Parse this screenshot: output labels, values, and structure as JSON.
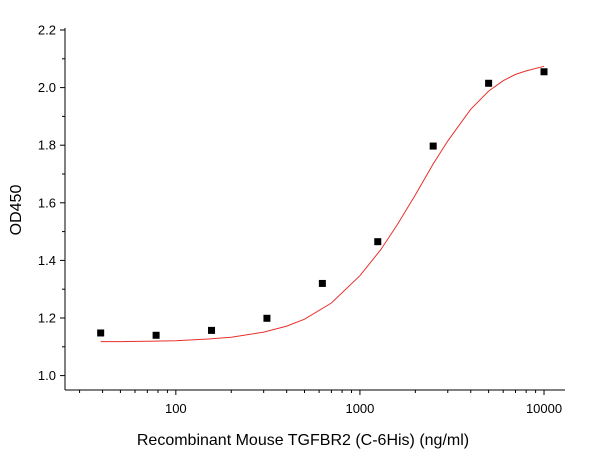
{
  "chart_data": {
    "type": "scatter",
    "xlabel": "Recombinant Mouse TGFBR2 (C-6His) (ng/ml)",
    "ylabel": "OD450",
    "xscale": "log",
    "xlim": [
      25,
      13000
    ],
    "ylim": [
      0.95,
      2.2
    ],
    "x_ticks": [
      100,
      1000,
      10000
    ],
    "x_tick_labels": [
      "100",
      "1000",
      "10000"
    ],
    "y_ticks": [
      1.0,
      1.2,
      1.4,
      1.6,
      1.8,
      2.0,
      2.2
    ],
    "y_tick_labels": [
      "1.0",
      "1.2",
      "1.4",
      "1.6",
      "1.8",
      "2.0",
      "2.2"
    ],
    "grid": false,
    "series": [
      {
        "type": "scatter",
        "marker": "square",
        "color": "#000000",
        "x": [
          39.06,
          78.13,
          156.25,
          312.5,
          625,
          1250,
          2500,
          5000,
          10000
        ],
        "y": [
          1.148,
          1.14,
          1.157,
          1.199,
          1.32,
          1.465,
          1.797,
          2.015,
          2.055
        ]
      },
      {
        "type": "line",
        "color": "#e8302b",
        "x": [
          39.06,
          50,
          70,
          100,
          150,
          200,
          300,
          400,
          500,
          700,
          1000,
          1300,
          1600,
          2000,
          2500,
          3000,
          4000,
          5000,
          6000,
          7000,
          8000,
          10000
        ],
        "y": [
          1.118,
          1.118,
          1.119,
          1.121,
          1.127,
          1.133,
          1.151,
          1.172,
          1.196,
          1.252,
          1.347,
          1.438,
          1.525,
          1.627,
          1.735,
          1.815,
          1.925,
          1.988,
          2.024,
          2.046,
          2.058,
          2.074
        ]
      }
    ]
  }
}
